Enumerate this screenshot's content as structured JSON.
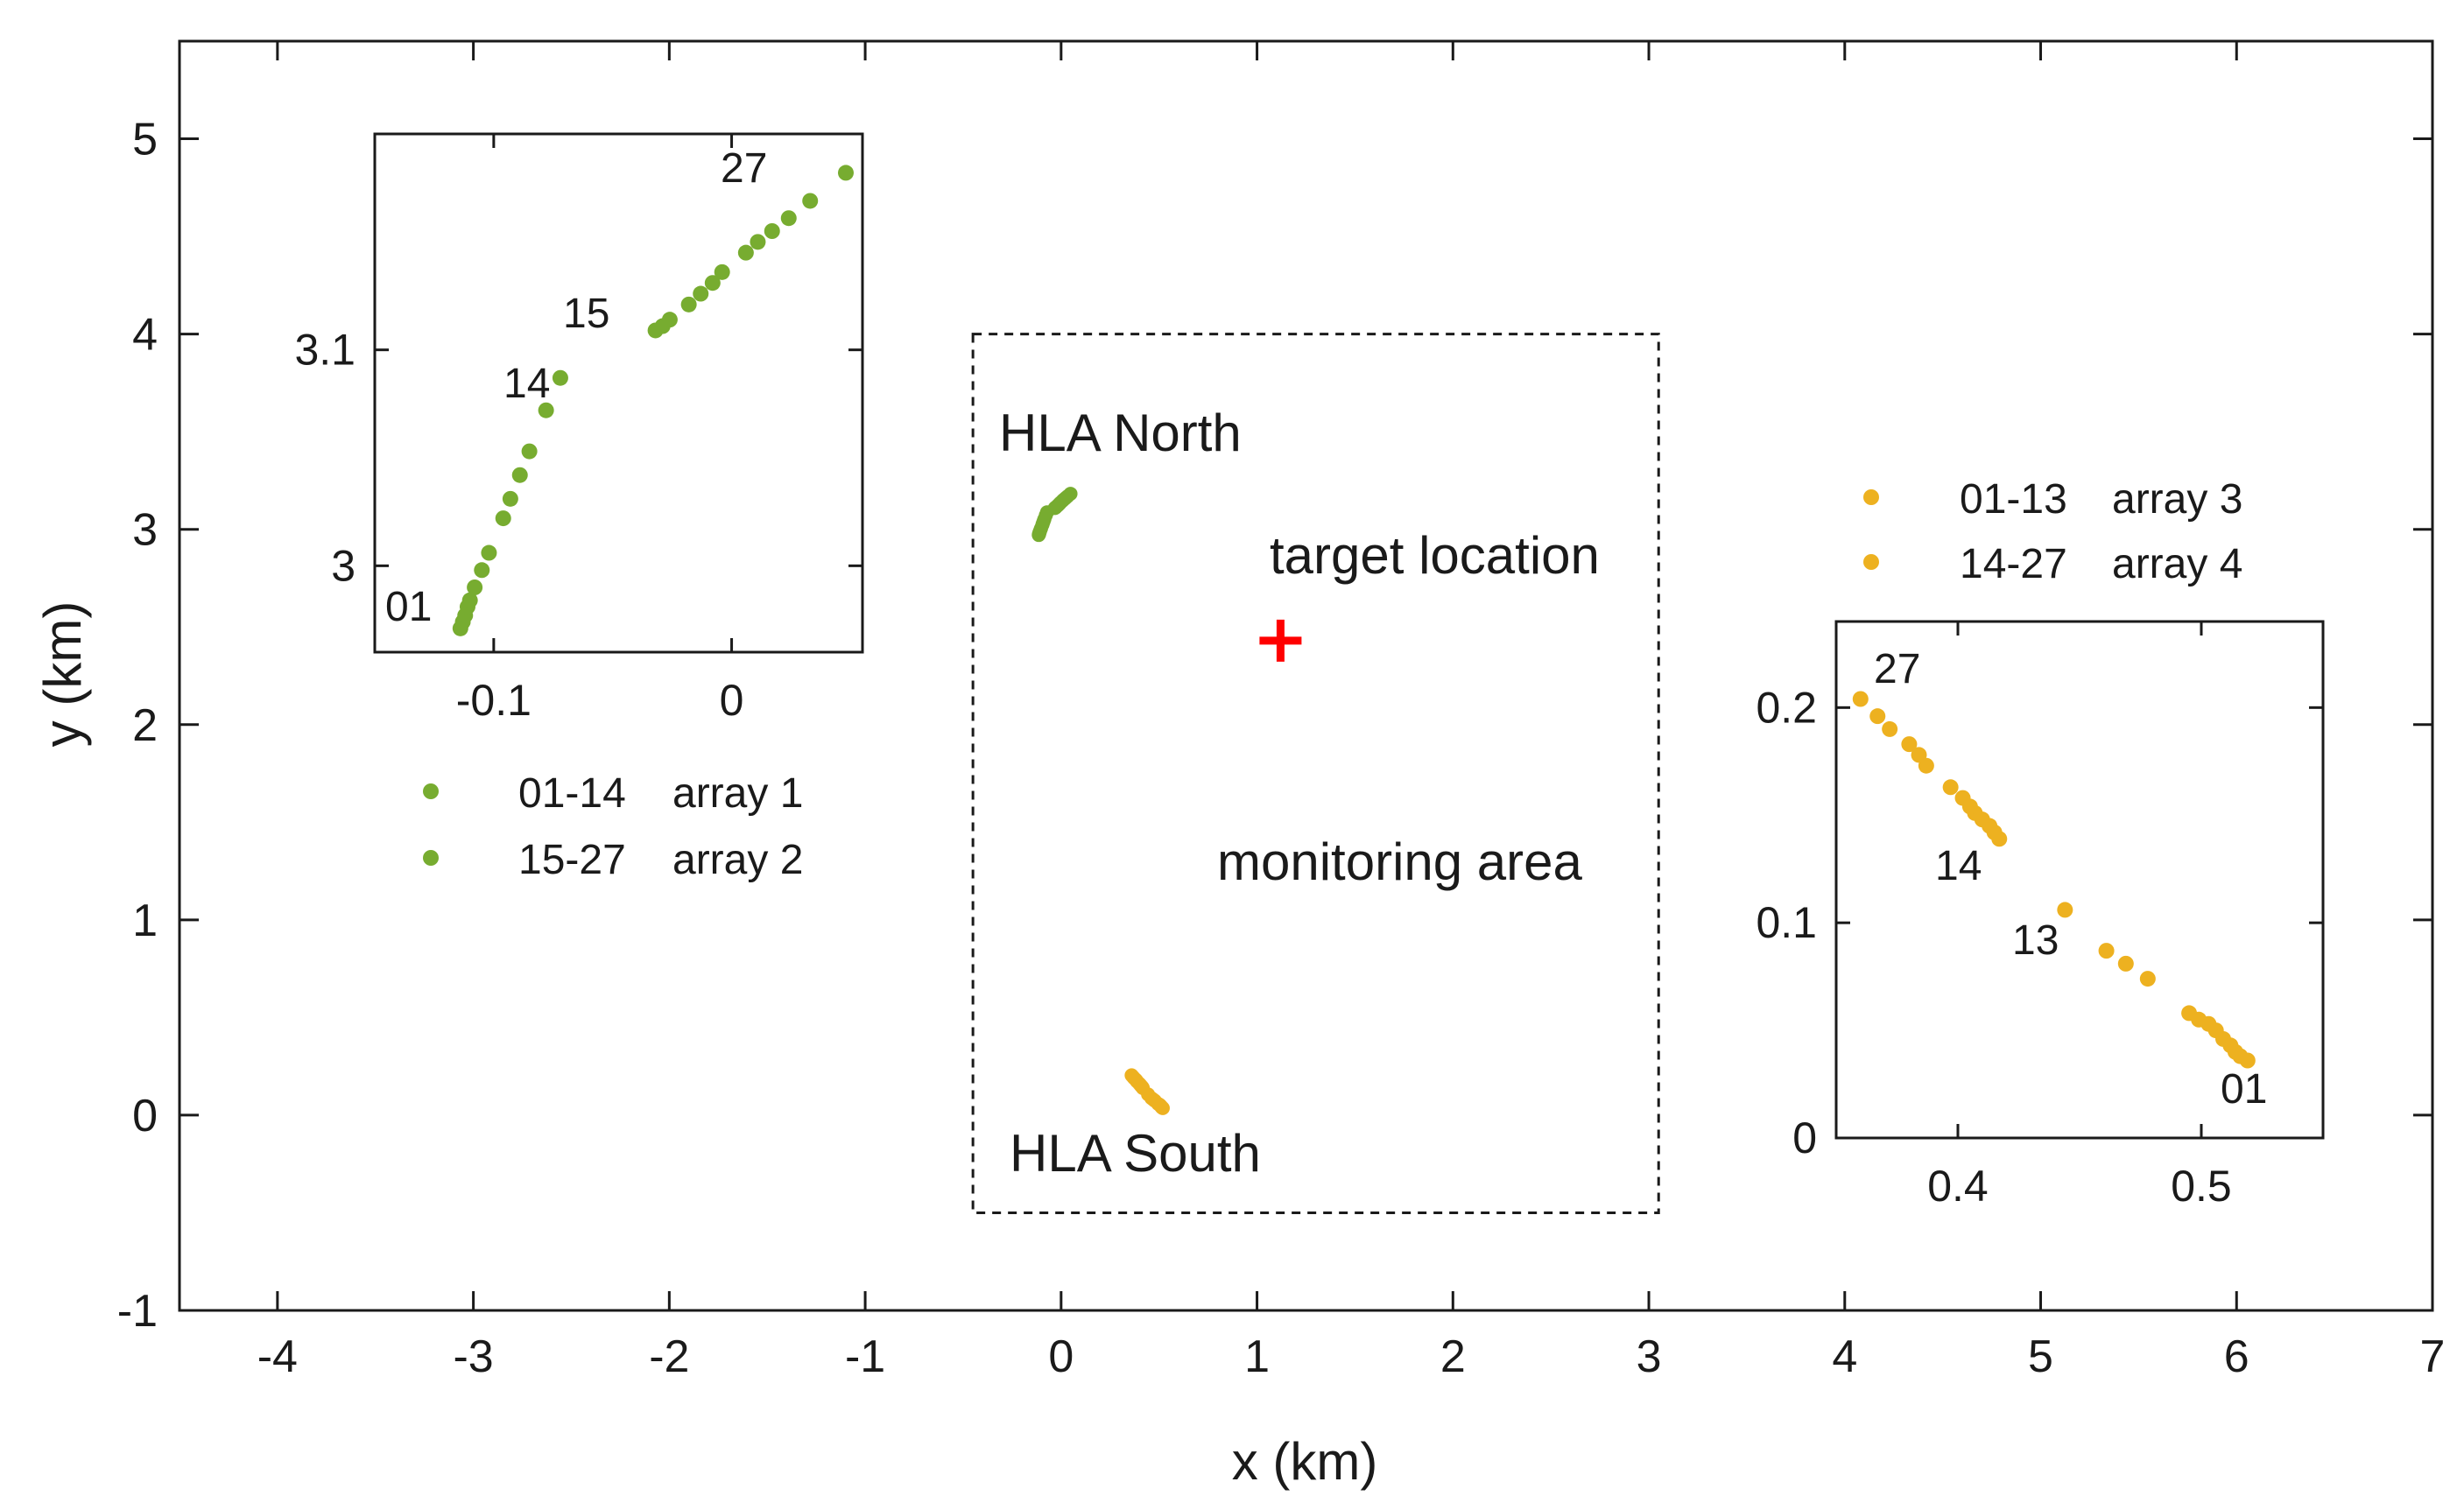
{
  "colors": {
    "green": "#77AC30",
    "orange": "#EDB120",
    "target": "#FF0000",
    "axis": "#1a1a1a"
  },
  "chart_data": {
    "type": "scatter",
    "title": "",
    "xlabel": "x (km)",
    "ylabel": "y (km)",
    "xlim": [
      -4.5,
      7
    ],
    "ylim": [
      -1,
      5.5
    ],
    "xticks": [
      -4,
      -3,
      -2,
      -1,
      0,
      1,
      2,
      3,
      4,
      5,
      6,
      7
    ],
    "yticks": [
      -1,
      0,
      1,
      2,
      3,
      4,
      5
    ],
    "monitoring_area": {
      "x": [
        -0.45,
        3.05
      ],
      "y": [
        -0.5,
        4.0
      ],
      "label": "monitoring area"
    },
    "target": {
      "x": 1.12,
      "y": 2.43,
      "label": "target location"
    },
    "annotations": {
      "north": "HLA North",
      "south": "HLA South"
    },
    "series": [
      {
        "name": "array 1",
        "range": "01-14",
        "color": "#77AC30",
        "x": [
          -0.114,
          -0.113,
          -0.112,
          -0.111,
          -0.11,
          -0.108,
          -0.105,
          -0.102,
          -0.096,
          -0.093,
          -0.089,
          -0.085,
          -0.078,
          -0.072
        ],
        "y": [
          2.971,
          2.974,
          2.977,
          2.981,
          2.984,
          2.99,
          2.998,
          3.006,
          3.022,
          3.031,
          3.042,
          3.053,
          3.072,
          3.087
        ]
      },
      {
        "name": "array 2",
        "range": "15-27",
        "color": "#77AC30",
        "x": [
          -0.032,
          -0.029,
          -0.026,
          -0.018,
          -0.013,
          -0.008,
          -0.004,
          0.006,
          0.011,
          0.017,
          0.024,
          0.033,
          0.048
        ],
        "y": [
          3.109,
          3.111,
          3.114,
          3.121,
          3.126,
          3.131,
          3.136,
          3.145,
          3.15,
          3.155,
          3.161,
          3.169,
          3.182
        ]
      },
      {
        "name": "array 3",
        "range": "01-13",
        "color": "#EDB120",
        "x": [
          0.519,
          0.516,
          0.514,
          0.512,
          0.509,
          0.506,
          0.503,
          0.499,
          0.495,
          0.478,
          0.469,
          0.461,
          0.444
        ],
        "y": [
          0.036,
          0.038,
          0.04,
          0.043,
          0.046,
          0.05,
          0.053,
          0.055,
          0.058,
          0.074,
          0.081,
          0.087,
          0.106
        ]
      },
      {
        "name": "array 4",
        "range": "14-27",
        "color": "#EDB120",
        "x": [
          0.417,
          0.415,
          0.413,
          0.41,
          0.407,
          0.405,
          0.402,
          0.397,
          0.387,
          0.384,
          0.38,
          0.372,
          0.367,
          0.36
        ],
        "y": [
          0.139,
          0.142,
          0.145,
          0.148,
          0.151,
          0.154,
          0.158,
          0.163,
          0.173,
          0.178,
          0.183,
          0.19,
          0.196,
          0.204
        ]
      }
    ],
    "inset_north": {
      "xlim": [
        -0.15,
        0.055
      ],
      "ylim": [
        2.96,
        3.2
      ],
      "xticks": [
        -0.1,
        0
      ],
      "xticklabels": [
        "-0.1",
        "0"
      ],
      "yticks": [
        3.0,
        3.1
      ],
      "yticklabels": [
        "3",
        "3.1"
      ],
      "point_labels": [
        "01",
        "14",
        "15",
        "27"
      ]
    },
    "inset_south": {
      "xlim": [
        0.35,
        0.55
      ],
      "ylim": [
        0,
        0.24
      ],
      "xticks": [
        0.4,
        0.5
      ],
      "xticklabels": [
        "0.4",
        "0.5"
      ],
      "yticks": [
        0,
        0.1,
        0.2
      ],
      "yticklabels": [
        "0",
        "0.1",
        "0.2"
      ],
      "point_labels": [
        "27",
        "14",
        "13",
        "01"
      ]
    },
    "legends": {
      "green": [
        {
          "range": "01-14",
          "label": "array 1"
        },
        {
          "range": "15-27",
          "label": "array 2"
        }
      ],
      "orange": [
        {
          "range": "01-13",
          "label": "array 3"
        },
        {
          "range": "14-27",
          "label": "array 4"
        }
      ]
    }
  }
}
